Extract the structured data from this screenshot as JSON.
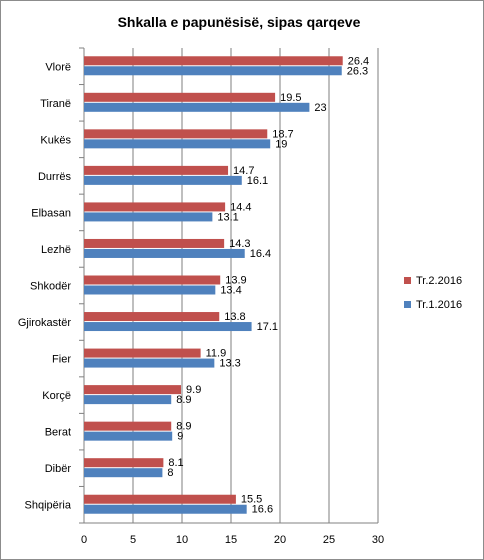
{
  "chart_data": {
    "type": "bar",
    "orientation": "horizontal",
    "title": "Shkalla e papunësisë, sipas qarqeve",
    "xlabel": "",
    "ylabel": "",
    "xlim": [
      0,
      30
    ],
    "x_ticks": [
      0,
      5,
      10,
      15,
      20,
      25,
      30
    ],
    "grid": true,
    "legend_position": "right",
    "categories": [
      "Vlorë",
      "Tiranë",
      "Kukës",
      "Durrës",
      "Elbasan",
      "Lezhë",
      "Shkodër",
      "Gjirokastër",
      "Fier",
      "Korçë",
      "Berat",
      "Dibër",
      "Shqipëria"
    ],
    "series": [
      {
        "name": "Tr.2.2016",
        "color": "#C0504D",
        "values": [
          26.4,
          19.5,
          18.7,
          14.7,
          14.4,
          14.3,
          13.9,
          13.8,
          11.9,
          9.9,
          8.9,
          8.1,
          15.5
        ]
      },
      {
        "name": "Tr.1.2016",
        "color": "#4F81BD",
        "values": [
          26.3,
          23,
          19,
          16.1,
          13.1,
          16.4,
          13.4,
          17.1,
          13.3,
          8.9,
          9,
          8,
          16.6
        ]
      }
    ]
  }
}
